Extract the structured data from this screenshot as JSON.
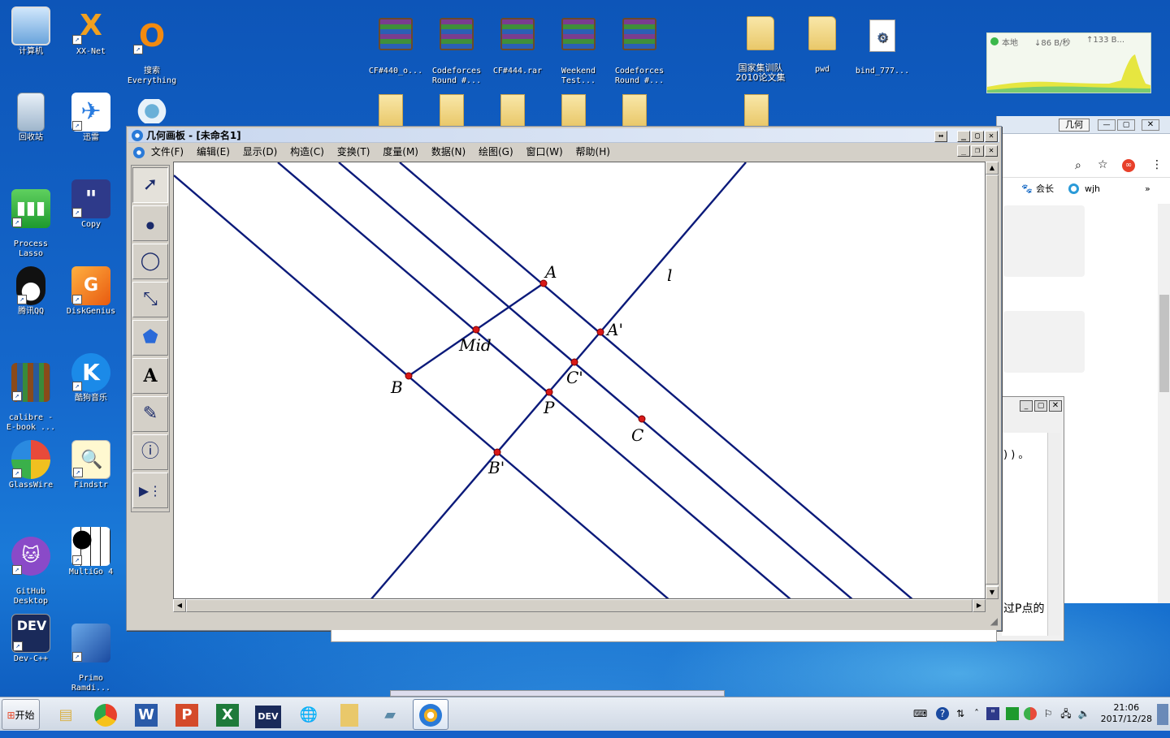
{
  "desktop_icons": {
    "computer": "计算机",
    "xxnet": "XX-Net",
    "everything": "搜索\nEverything",
    "recycle": "回收站",
    "xunlei": "迅雷",
    "process_lasso": "Process\nLasso",
    "copy": "Copy",
    "qq": "腾讯QQ",
    "diskgenius": "DiskGenius",
    "calibre": "calibre -\nE-book ...",
    "kugou": "酷狗音乐",
    "glasswire": "GlassWire",
    "findstr": "Findstr",
    "github": "GitHub\nDesktop",
    "multigo": "MultiGo 4",
    "devcpp": "Dev-C++",
    "primo": "Primo\nRamdi..."
  },
  "top_files": [
    {
      "label": "CF#440_o...",
      "kind": "rar"
    },
    {
      "label": "Codeforces\nRound #...",
      "kind": "rar"
    },
    {
      "label": "CF#444.rar",
      "kind": "rar"
    },
    {
      "label": "Weekend\nTest...",
      "kind": "rar"
    },
    {
      "label": "Codeforces\nRound #...",
      "kind": "rar"
    },
    {
      "label": "国家集训队\n2010论文集",
      "kind": "folder"
    },
    {
      "label": "pwd",
      "kind": "folder"
    },
    {
      "label": "bind_777...",
      "kind": "file"
    }
  ],
  "netmon": {
    "local": "本地",
    "down": "↓86 B/秒",
    "up": "↑133 B..."
  },
  "browser_behind": {
    "title_chip": "几何",
    "bookmarks": [
      "会长",
      "wjh"
    ],
    "text_frag": ") ) 。",
    "bottom_text": "过P点的"
  },
  "gsp": {
    "title": "几何画板 - [未命名1]",
    "menu": [
      "文件(F)",
      "编辑(E)",
      "显示(D)",
      "构造(C)",
      "变换(T)",
      "度量(M)",
      "数据(N)",
      "绘图(G)",
      "窗口(W)",
      "帮助(H)"
    ],
    "tools": [
      "select-arrow",
      "point",
      "compass",
      "straightedge",
      "polygon",
      "text",
      "marker",
      "info",
      "custom"
    ],
    "labels": {
      "A": "A",
      "B": "B",
      "C": "C",
      "Mid": "Mid",
      "A_prime": "A'",
      "B_prime": "B'",
      "C_prime": "C'",
      "P": "P",
      "l": "l"
    }
  },
  "taskbar": {
    "start": "开始",
    "apps": [
      "explorer",
      "chrome",
      "word",
      "powerpoint",
      "excel",
      "devcpp",
      "network",
      "folder",
      "notes",
      "geometer"
    ],
    "clock_time": "21:06",
    "clock_date": "2017/12/28"
  },
  "colors": {
    "line": "#0b1a7a",
    "point": "#d81818"
  }
}
